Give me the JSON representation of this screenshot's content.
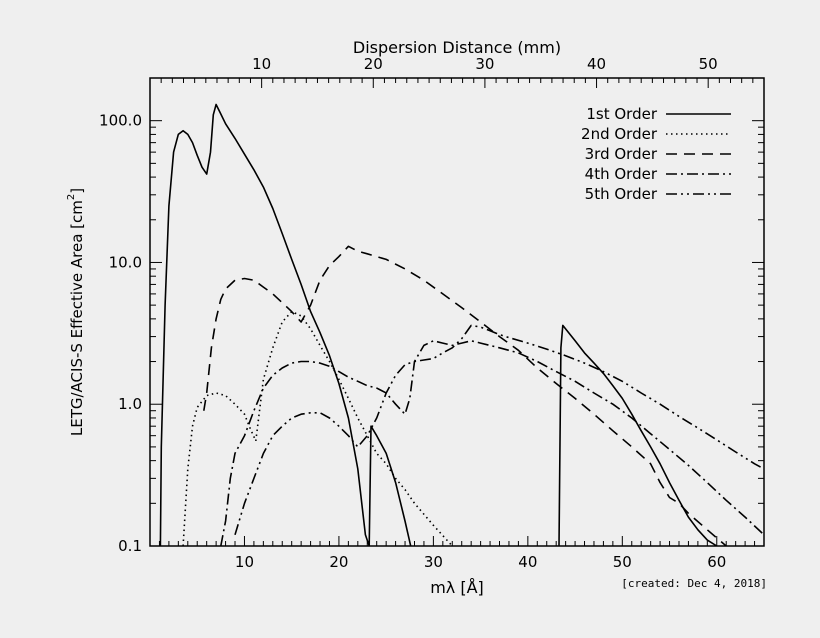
{
  "chart_data": {
    "type": "line",
    "xlabel": "mλ [Å]",
    "ylabel": "LETG/ACIS-S Effective Area [cm",
    "ylabel_superscript": "2",
    "ylabel_close": "]",
    "top_axis_label": "Dispersion Distance (mm)",
    "footnote": "[created: Dec  4, 2018]",
    "xlim": [
      0,
      65
    ],
    "ylim": [
      0.1,
      200
    ],
    "yscale": "log",
    "x_ticks": [
      10,
      20,
      30,
      40,
      50,
      60
    ],
    "x_tick_labels": [
      "10",
      "20",
      "30",
      "40",
      "50",
      "60"
    ],
    "y_ticks": [
      0.1,
      1.0,
      10.0,
      100.0
    ],
    "y_tick_labels": [
      "0.1",
      "1.0",
      "10.0",
      "100.0"
    ],
    "top_ticks": [
      10,
      20,
      30,
      40,
      50
    ],
    "top_tick_labels": [
      "10",
      "20",
      "30",
      "40",
      "50"
    ],
    "top_axis_max_mm": 55,
    "legend_position": "top-right",
    "series": [
      {
        "name": "1st Order",
        "dash": "solid",
        "points": [
          [
            1.1,
            0.1
          ],
          [
            1.2,
            0.5
          ],
          [
            1.6,
            5
          ],
          [
            2,
            25
          ],
          [
            2.5,
            60
          ],
          [
            3,
            80
          ],
          [
            3.5,
            85
          ],
          [
            4,
            80
          ],
          [
            4.5,
            70
          ],
          [
            5,
            57
          ],
          [
            5.5,
            47
          ],
          [
            6,
            42
          ],
          [
            6.4,
            60
          ],
          [
            6.7,
            110
          ],
          [
            7,
            130
          ],
          [
            7.4,
            115
          ],
          [
            8,
            95
          ],
          [
            9,
            75
          ],
          [
            10,
            58
          ],
          [
            11,
            45
          ],
          [
            12,
            34
          ],
          [
            13,
            24
          ],
          [
            14,
            16
          ],
          [
            15,
            10.5
          ],
          [
            16,
            7
          ],
          [
            17,
            4.5
          ],
          [
            18,
            3.2
          ],
          [
            19,
            2.2
          ],
          [
            20,
            1.4
          ],
          [
            21,
            0.8
          ],
          [
            22,
            0.35
          ],
          [
            22.8,
            0.12
          ],
          [
            23.2,
            0.1
          ],
          [
            23.4,
            0.7
          ],
          [
            24,
            0.6
          ],
          [
            25,
            0.45
          ],
          [
            26,
            0.28
          ],
          [
            27,
            0.15
          ],
          [
            27.6,
            0.1
          ]
        ]
      },
      {
        "name": "1st Order",
        "dash": "solid",
        "points": [
          [
            43.3,
            0.1
          ],
          [
            43.5,
            2.5
          ],
          [
            43.7,
            3.6
          ],
          [
            44,
            3.4
          ],
          [
            45,
            2.8
          ],
          [
            46,
            2.3
          ],
          [
            47,
            1.95
          ],
          [
            48,
            1.65
          ],
          [
            49,
            1.35
          ],
          [
            50,
            1.1
          ],
          [
            51,
            0.85
          ],
          [
            52,
            0.65
          ],
          [
            53,
            0.5
          ],
          [
            54,
            0.38
          ],
          [
            55,
            0.28
          ],
          [
            56,
            0.21
          ],
          [
            57,
            0.16
          ],
          [
            58,
            0.13
          ],
          [
            59,
            0.11
          ],
          [
            60,
            0.1
          ]
        ]
      },
      {
        "name": "2nd Order",
        "dash": "dotted",
        "points": [
          [
            3.5,
            0.1
          ],
          [
            4,
            0.35
          ],
          [
            4.5,
            0.7
          ],
          [
            5,
            0.95
          ],
          [
            6,
            1.15
          ],
          [
            7,
            1.2
          ],
          [
            8,
            1.15
          ],
          [
            9,
            1.0
          ],
          [
            10,
            0.85
          ],
          [
            10.5,
            0.7
          ],
          [
            11.2,
            0.55
          ],
          [
            12,
            1.5
          ],
          [
            13,
            2.5
          ],
          [
            14,
            3.8
          ],
          [
            15,
            4.5
          ],
          [
            16,
            4.2
          ],
          [
            17,
            3.4
          ],
          [
            18,
            2.6
          ],
          [
            19,
            2.0
          ],
          [
            20,
            1.5
          ],
          [
            21,
            1.1
          ],
          [
            22,
            0.8
          ],
          [
            23,
            0.6
          ],
          [
            24,
            0.45
          ],
          [
            25,
            0.38
          ],
          [
            26,
            0.3
          ],
          [
            27,
            0.25
          ],
          [
            28,
            0.2
          ],
          [
            30,
            0.14
          ],
          [
            32,
            0.1
          ]
        ]
      },
      {
        "name": "3rd Order",
        "dash": "dashed",
        "points": [
          [
            5.7,
            0.9
          ],
          [
            6,
            1.2
          ],
          [
            6.5,
            2.5
          ],
          [
            7,
            4
          ],
          [
            7.5,
            5.5
          ],
          [
            8,
            6.5
          ],
          [
            9,
            7.5
          ],
          [
            10,
            7.7
          ],
          [
            11,
            7.5
          ],
          [
            12,
            6.7
          ],
          [
            13,
            6.0
          ],
          [
            14,
            5.2
          ],
          [
            15,
            4.5
          ],
          [
            16,
            3.8
          ],
          [
            17,
            5.0
          ],
          [
            18,
            7.5
          ],
          [
            19,
            9.5
          ],
          [
            20,
            11
          ],
          [
            21,
            13
          ],
          [
            22,
            12
          ],
          [
            23,
            11.5
          ],
          [
            25,
            10.5
          ],
          [
            27,
            9.0
          ],
          [
            29,
            7.5
          ],
          [
            31,
            6.0
          ],
          [
            33,
            4.8
          ],
          [
            35,
            3.8
          ],
          [
            37,
            3.0
          ],
          [
            39,
            2.4
          ],
          [
            41,
            1.8
          ],
          [
            43,
            1.4
          ],
          [
            45,
            1.1
          ],
          [
            47,
            0.85
          ],
          [
            49,
            0.65
          ],
          [
            51,
            0.5
          ],
          [
            53,
            0.38
          ],
          [
            54,
            0.28
          ],
          [
            55,
            0.22
          ],
          [
            56,
            0.2
          ],
          [
            57,
            0.17
          ],
          [
            59,
            0.13
          ],
          [
            61,
            0.1
          ]
        ]
      },
      {
        "name": "4th Order",
        "dash": "dashdot",
        "points": [
          [
            7.5,
            0.1
          ],
          [
            8,
            0.15
          ],
          [
            8.5,
            0.3
          ],
          [
            9,
            0.45
          ],
          [
            10,
            0.6
          ],
          [
            11,
            0.9
          ],
          [
            12,
            1.3
          ],
          [
            13,
            1.6
          ],
          [
            14,
            1.8
          ],
          [
            15,
            1.95
          ],
          [
            16,
            2.0
          ],
          [
            17,
            2.0
          ],
          [
            18,
            1.95
          ],
          [
            19,
            1.85
          ],
          [
            20,
            1.7
          ],
          [
            21,
            1.55
          ],
          [
            22,
            1.45
          ],
          [
            23,
            1.35
          ],
          [
            24,
            1.3
          ],
          [
            25,
            1.2
          ],
          [
            26,
            1.0
          ],
          [
            27,
            0.85
          ],
          [
            27.5,
            1.1
          ],
          [
            28,
            2.0
          ],
          [
            29,
            2.6
          ],
          [
            30,
            2.8
          ],
          [
            31,
            2.7
          ],
          [
            32,
            2.6
          ],
          [
            33,
            2.7
          ],
          [
            34,
            2.8
          ],
          [
            35,
            2.7
          ],
          [
            37,
            2.5
          ],
          [
            39,
            2.3
          ],
          [
            41,
            2.0
          ],
          [
            43,
            1.7
          ],
          [
            45,
            1.45
          ],
          [
            47,
            1.2
          ],
          [
            49,
            1.0
          ],
          [
            51,
            0.8
          ],
          [
            53,
            0.62
          ],
          [
            55,
            0.48
          ],
          [
            57,
            0.37
          ],
          [
            59,
            0.28
          ],
          [
            61,
            0.21
          ],
          [
            63,
            0.16
          ],
          [
            65,
            0.12
          ]
        ]
      },
      {
        "name": "5th Order",
        "dash": "dashdotdot",
        "points": [
          [
            9,
            0.12
          ],
          [
            10,
            0.2
          ],
          [
            11,
            0.3
          ],
          [
            12,
            0.45
          ],
          [
            13,
            0.6
          ],
          [
            14,
            0.7
          ],
          [
            15,
            0.8
          ],
          [
            16,
            0.85
          ],
          [
            17,
            0.87
          ],
          [
            18,
            0.87
          ],
          [
            19,
            0.8
          ],
          [
            20,
            0.7
          ],
          [
            21,
            0.6
          ],
          [
            22,
            0.5
          ],
          [
            23,
            0.6
          ],
          [
            24,
            0.8
          ],
          [
            25,
            1.2
          ],
          [
            26,
            1.6
          ],
          [
            27,
            1.9
          ],
          [
            28,
            2.0
          ],
          [
            29,
            2.05
          ],
          [
            30,
            2.1
          ],
          [
            31,
            2.3
          ],
          [
            32,
            2.5
          ],
          [
            33,
            2.9
          ],
          [
            34,
            3.6
          ],
          [
            35,
            3.5
          ],
          [
            36,
            3.3
          ],
          [
            37,
            3.1
          ],
          [
            38,
            2.95
          ],
          [
            40,
            2.7
          ],
          [
            42,
            2.45
          ],
          [
            44,
            2.2
          ],
          [
            46,
            1.95
          ],
          [
            48,
            1.7
          ],
          [
            50,
            1.45
          ],
          [
            52,
            1.2
          ],
          [
            54,
            1.0
          ],
          [
            56,
            0.82
          ],
          [
            58,
            0.68
          ],
          [
            60,
            0.56
          ],
          [
            62,
            0.46
          ],
          [
            64,
            0.38
          ],
          [
            65,
            0.35
          ]
        ]
      }
    ],
    "legend": [
      {
        "label": "1st Order",
        "dash": "solid"
      },
      {
        "label": "2nd Order",
        "dash": "dotted"
      },
      {
        "label": "3rd Order",
        "dash": "dashed"
      },
      {
        "label": "4th Order",
        "dash": "dashdot"
      },
      {
        "label": "5th Order",
        "dash": "dashdotdot"
      }
    ]
  }
}
